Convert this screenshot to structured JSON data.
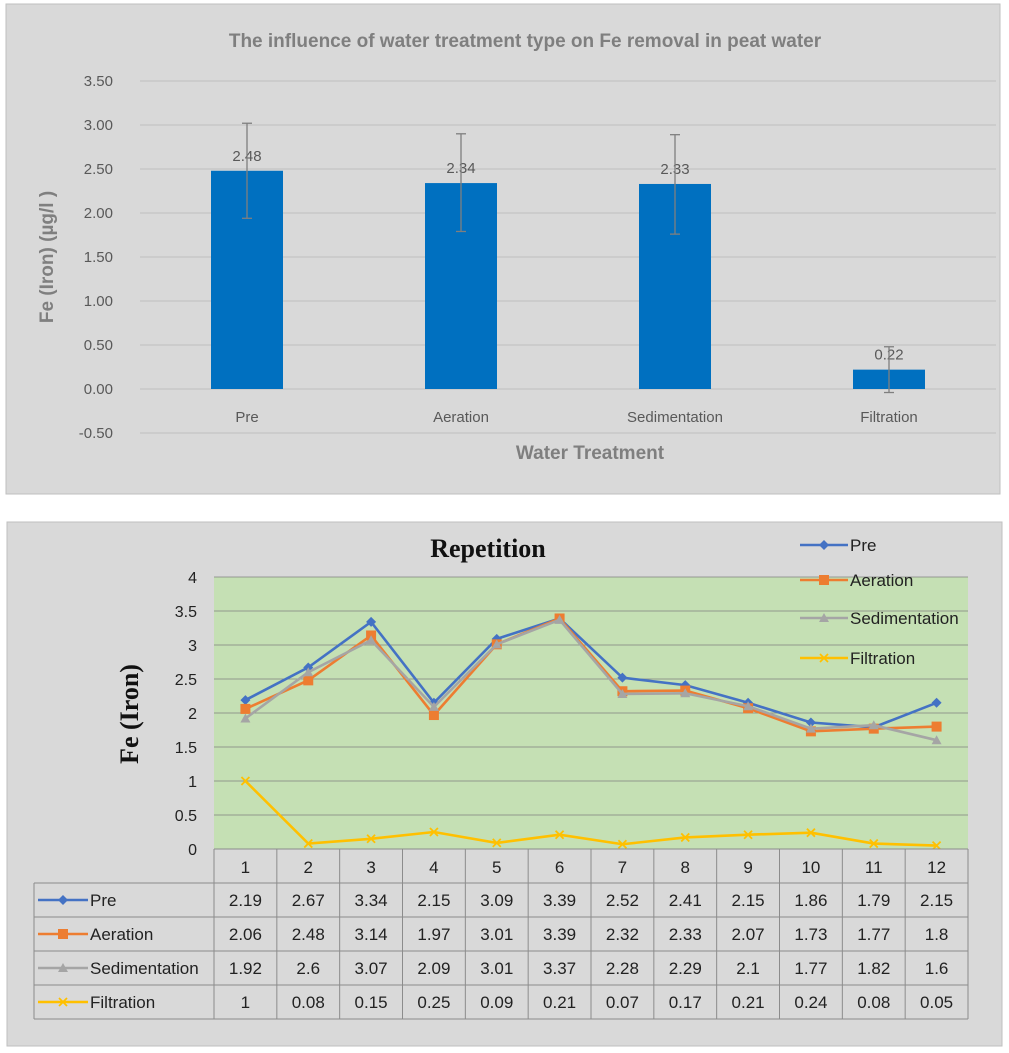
{
  "chart_data": [
    {
      "type": "bar",
      "title": "The influence of water treatment  type on Fe removal in peat water",
      "xlabel": "Water Treatment",
      "ylabel": "Fe (Iron) (µg/l )",
      "categories": [
        "Pre",
        "Aeration",
        "Sedimentation",
        "Filtration"
      ],
      "values": [
        2.48,
        2.34,
        2.33,
        0.22
      ],
      "value_labels": [
        "2.48",
        "2.34",
        "2.33",
        "0.22"
      ],
      "error_low": [
        1.94,
        1.79,
        1.76,
        -0.04
      ],
      "error_high": [
        3.02,
        2.9,
        2.89,
        0.48
      ],
      "ylim": [
        -0.5,
        3.5
      ],
      "yticks": [
        -0.5,
        0,
        0.5,
        1,
        1.5,
        2,
        2.5,
        3,
        3.5
      ],
      "ytick_labels": [
        "-0.50",
        "0.00",
        "0.50",
        "1.00",
        "1.50",
        "2.00",
        "2.50",
        "3.00",
        "3.50"
      ],
      "grid": true,
      "colors": {
        "bar": "#0070c0",
        "background": "#d9d9d9",
        "text": "#595959",
        "title": "#7f7f7f",
        "error_bar": "#7f7f7f"
      }
    },
    {
      "type": "line",
      "title": "Repetition",
      "ylabel": "Fe (Iron)",
      "x": [
        1,
        2,
        3,
        4,
        5,
        6,
        7,
        8,
        9,
        10,
        11,
        12
      ],
      "ylim": [
        0,
        4
      ],
      "yticks": [
        0,
        0.5,
        1,
        1.5,
        2,
        2.5,
        3,
        3.5,
        4
      ],
      "ytick_labels": [
        "0",
        "0.5",
        "1",
        "1.5",
        "2",
        "2.5",
        "3",
        "3.5",
        "4"
      ],
      "grid": true,
      "legend_position": "top-right",
      "series": [
        {
          "name": "Pre",
          "color": "#4472c4",
          "marker": "diamond",
          "values": [
            2.19,
            2.67,
            3.34,
            2.15,
            3.09,
            3.39,
            2.52,
            2.41,
            2.15,
            1.86,
            1.79,
            2.15
          ],
          "labels": [
            "2.19",
            "2.67",
            "3.34",
            "2.15",
            "3.09",
            "3.39",
            "2.52",
            "2.41",
            "2.15",
            "1.86",
            "1.79",
            "2.15"
          ]
        },
        {
          "name": "Aeration",
          "color": "#ed7d31",
          "marker": "square",
          "values": [
            2.06,
            2.48,
            3.14,
            1.97,
            3.01,
            3.39,
            2.32,
            2.33,
            2.07,
            1.73,
            1.77,
            1.8
          ],
          "labels": [
            "2.06",
            "2.48",
            "3.14",
            "1.97",
            "3.01",
            "3.39",
            "2.32",
            "2.33",
            "2.07",
            "1.73",
            "1.77",
            "1.8"
          ]
        },
        {
          "name": "Sedimentation",
          "color": "#a5a5a5",
          "marker": "triangle",
          "values": [
            1.92,
            2.6,
            3.07,
            2.09,
            3.01,
            3.37,
            2.28,
            2.29,
            2.1,
            1.77,
            1.82,
            1.6
          ],
          "labels": [
            "1.92",
            "2.6",
            "3.07",
            "2.09",
            "3.01",
            "3.37",
            "2.28",
            "2.29",
            "2.1",
            "1.77",
            "1.82",
            "1.6"
          ]
        },
        {
          "name": "Filtration",
          "color": "#ffc000",
          "marker": "x",
          "values": [
            1,
            0.08,
            0.15,
            0.25,
            0.09,
            0.21,
            0.07,
            0.17,
            0.21,
            0.24,
            0.08,
            0.05
          ],
          "labels": [
            "1",
            "0.08",
            "0.15",
            "0.25",
            "0.09",
            "0.21",
            "0.07",
            "0.17",
            "0.21",
            "0.24",
            "0.08",
            "0.05"
          ]
        }
      ],
      "colors": {
        "plot_area": "#c5e0b4",
        "background": "#d9d9d9",
        "grid": "#7f7f7f"
      }
    }
  ]
}
